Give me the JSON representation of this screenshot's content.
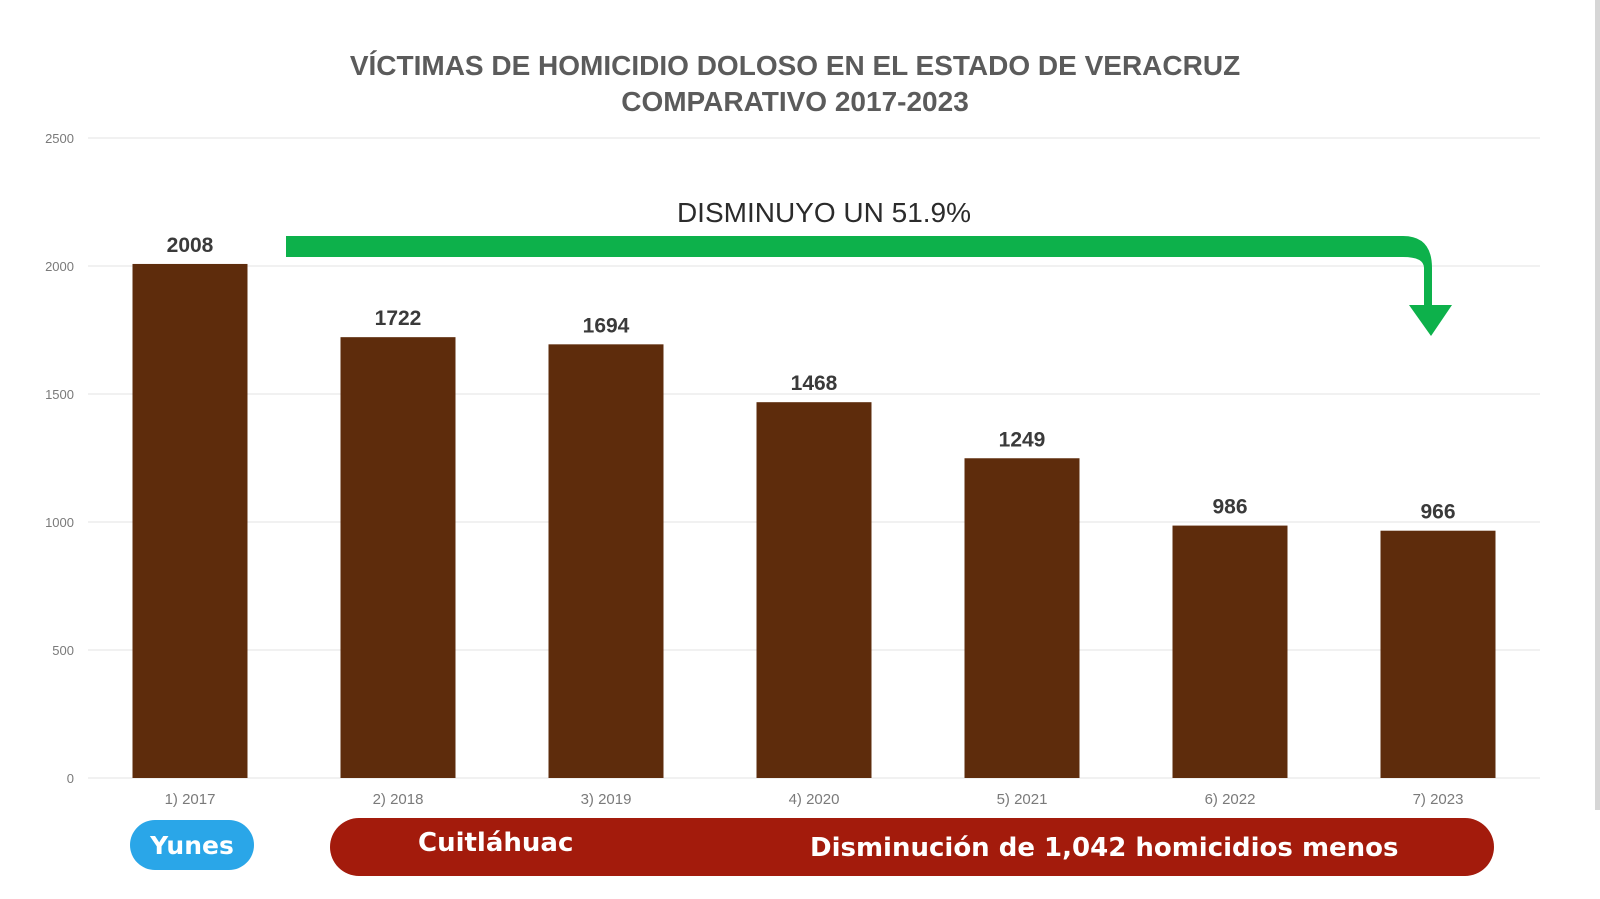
{
  "chart_data": {
    "type": "bar",
    "title": "VÍCTIMAS DE HOMICIDIO DOLOSO EN EL ESTADO DE VERACRUZ",
    "subtitle": "COMPARATIVO 2017-2023",
    "categories": [
      "1) 2017",
      "2) 2018",
      "3) 2019",
      "4) 2020",
      "5) 2021",
      "6) 2022",
      "7) 2023"
    ],
    "values": [
      2008,
      1722,
      1694,
      1468,
      1249,
      986,
      966
    ],
    "data_labels": [
      "2008",
      "1722",
      "1694",
      "1468",
      "1249",
      "986",
      "966"
    ],
    "yticks": [
      0,
      500,
      1000,
      1500,
      2000,
      2500
    ],
    "ylim": [
      0,
      2500
    ],
    "grid": true,
    "annotation": "DISMINUYO UN 51.9%",
    "colors": {
      "bar": "#5e2c0c",
      "arrow": "#0db14b"
    }
  },
  "footer": {
    "left_pill": "Yunes",
    "right_pill_left": "Cuitláhuac",
    "right_pill_right": "Disminución de 1,042 homicidios menos",
    "colors": {
      "blue": "#2aa6e8",
      "red": "#a31b0c"
    }
  }
}
